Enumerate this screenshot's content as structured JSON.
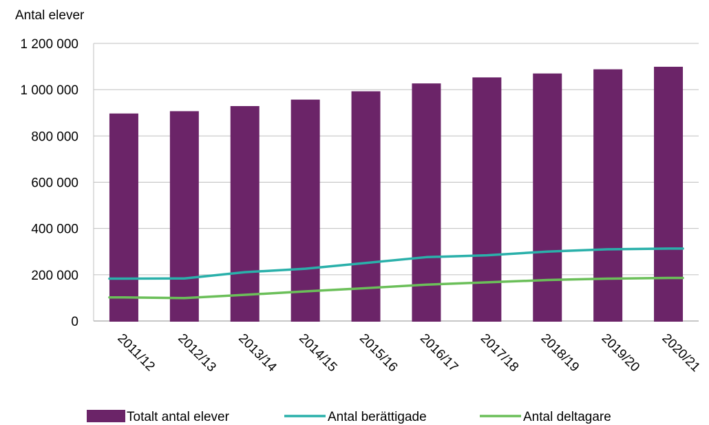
{
  "chart_data": {
    "type": "bar",
    "ylabel": "Antal elever",
    "ylim": [
      0,
      1200000
    ],
    "yticks": [
      0,
      200000,
      400000,
      600000,
      800000,
      1000000,
      1200000
    ],
    "ytick_labels": [
      "0",
      "200 000",
      "400 000",
      "600 000",
      "800 000",
      "1 000 000",
      "1 200 000"
    ],
    "categories": [
      "2011/12",
      "2012/13",
      "2013/14",
      "2014/15",
      "2015/16",
      "2016/17",
      "2017/18",
      "2018/19",
      "2019/20",
      "2020/21"
    ],
    "grid": true,
    "legend_position": "bottom",
    "series": [
      {
        "name": "Totalt antal elever",
        "kind": "bar",
        "color": "#6B2468",
        "values": [
          897000,
          907000,
          929000,
          957000,
          993000,
          1027000,
          1053000,
          1070000,
          1088000,
          1099000
        ]
      },
      {
        "name": "Antal berättigade",
        "kind": "line",
        "color": "#2AB0AA",
        "values": [
          183000,
          184000,
          211000,
          226000,
          251000,
          276000,
          284000,
          300000,
          310000,
          313000
        ]
      },
      {
        "name": "Antal deltagare",
        "kind": "line",
        "color": "#6BBF59",
        "values": [
          102000,
          99000,
          113000,
          128000,
          142000,
          157000,
          167000,
          177000,
          183000,
          186000
        ]
      }
    ]
  }
}
